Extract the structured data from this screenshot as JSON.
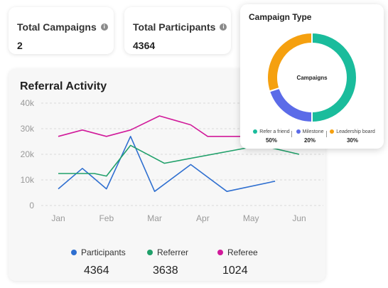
{
  "stats": {
    "total_campaigns_label": "Total Campaigns",
    "total_campaigns_value": "2",
    "total_participants_label": "Total Participants",
    "total_participants_value": "4364",
    "info_icon": "info-icon"
  },
  "activity": {
    "title": "Referral Activity",
    "legend": [
      {
        "name": "Participants",
        "total": "4364",
        "color": "#2f6fd0"
      },
      {
        "name": "Referrer",
        "total": "3638",
        "color": "#20a06a"
      },
      {
        "name": "Referee",
        "total": "1024",
        "color": "#d11a9a"
      }
    ]
  },
  "campaign_type": {
    "title": "Campaign Type",
    "center_label": "Campaigns",
    "legend": [
      {
        "label": "Refer a friend",
        "pct": "50%",
        "color": "#1abc9c"
      },
      {
        "label": "Milestone",
        "pct": "20%",
        "color": "#5b6be8"
      },
      {
        "label": "Leadership board",
        "pct": "30%",
        "color": "#f5a00f"
      }
    ]
  },
  "chart_data": [
    {
      "type": "line",
      "title": "Referral Activity",
      "x_ticks": [
        "Jan",
        "Feb",
        "Mar",
        "Apr",
        "May",
        "Jun"
      ],
      "y_ticks": [
        "0",
        "10k",
        "20k",
        "30k",
        "40k"
      ],
      "ylim": [
        0,
        40000
      ],
      "grid": true,
      "legend_position": "bottom",
      "series": [
        {
          "name": "Participants",
          "color": "#2f6fd0",
          "points": [
            [
              0,
              6500
            ],
            [
              0.5,
              14500
            ],
            [
              1,
              6500
            ],
            [
              1.5,
              27000
            ],
            [
              2,
              5500
            ],
            [
              2.75,
              16000
            ],
            [
              3.5,
              5500
            ],
            [
              4.5,
              9500
            ]
          ]
        },
        {
          "name": "Referrer",
          "color": "#20a06a",
          "points": [
            [
              0,
              12500
            ],
            [
              0.75,
              12500
            ],
            [
              1,
              11500
            ],
            [
              1.5,
              23500
            ],
            [
              2.2,
              16500
            ],
            [
              4.2,
              23500
            ],
            [
              5,
              20000
            ]
          ]
        },
        {
          "name": "Referee",
          "color": "#d11a9a",
          "points": [
            [
              0,
              27000
            ],
            [
              0.5,
              29500
            ],
            [
              1,
              27000
            ],
            [
              1.5,
              29500
            ],
            [
              2.1,
              35000
            ],
            [
              2.75,
              31500
            ],
            [
              3.1,
              27000
            ],
            [
              5,
              27000
            ]
          ]
        }
      ]
    },
    {
      "type": "pie",
      "title": "Campaign Type",
      "categories": [
        "Refer a friend",
        "Milestone",
        "Leadership board"
      ],
      "values": [
        50,
        20,
        30
      ],
      "colors": [
        "#1abc9c",
        "#5b6be8",
        "#f5a00f"
      ]
    }
  ]
}
